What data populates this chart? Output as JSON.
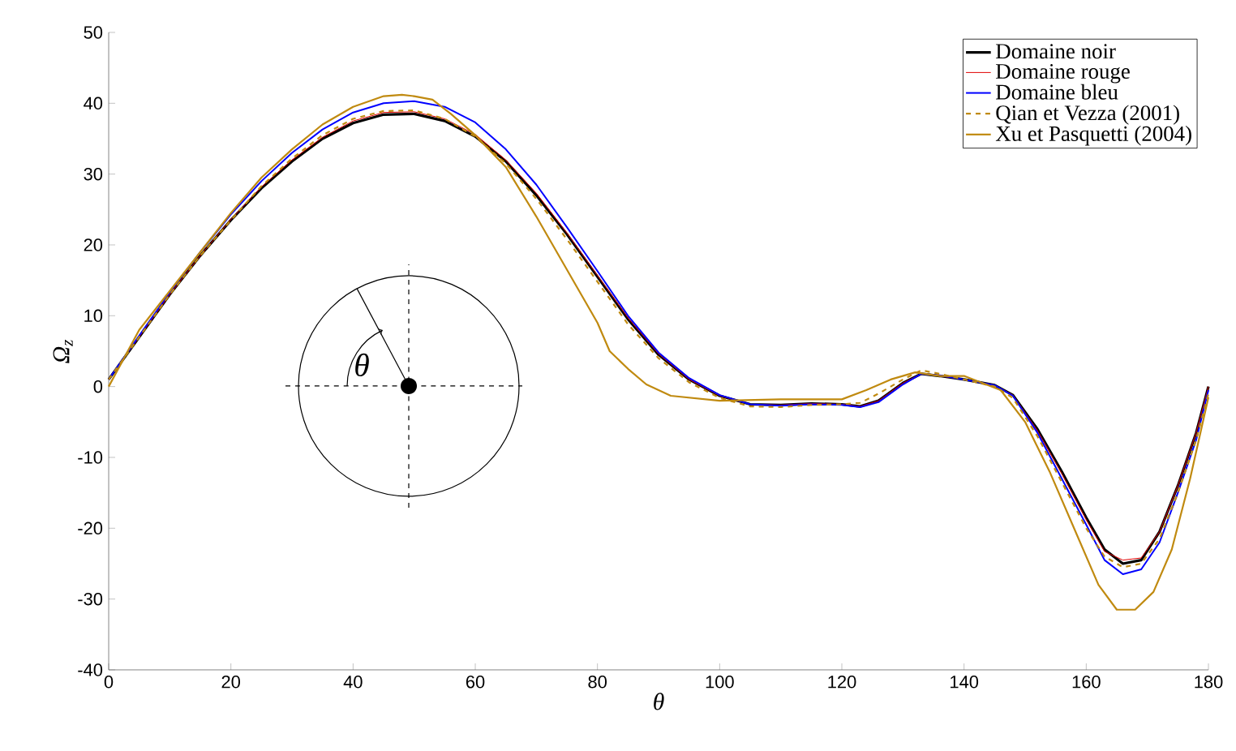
{
  "chart_data": {
    "type": "line",
    "xlabel": "θ",
    "ylabel": "Ω$_{z}$",
    "xlim": [
      0,
      180
    ],
    "ylim": [
      -40,
      50
    ],
    "xticks": [
      0,
      20,
      40,
      60,
      80,
      100,
      120,
      140,
      160,
      180
    ],
    "yticks": [
      -40,
      -30,
      -20,
      -10,
      0,
      10,
      20,
      30,
      40,
      50
    ],
    "grid": false,
    "legend": "top right",
    "marker": "none",
    "annotations": [
      "θ"
    ],
    "series": [
      {
        "name": "Domaine noir",
        "color": "#000000",
        "line_style": "solid",
        "x": [
          0,
          5,
          10,
          15,
          20,
          25,
          30,
          35,
          40,
          45,
          50,
          55,
          60,
          65,
          70,
          75,
          80,
          85,
          90,
          95,
          100,
          105,
          110,
          115,
          120,
          123,
          126,
          130,
          133,
          136,
          140,
          145,
          148,
          152,
          156,
          160,
          163,
          166,
          169,
          172,
          175,
          178,
          180
        ],
        "values": [
          1,
          7,
          13,
          18.5,
          23.5,
          28,
          31.8,
          35,
          37.2,
          38.4,
          38.5,
          37.5,
          35.3,
          31.8,
          27,
          21.5,
          15.5,
          9.5,
          4.5,
          1,
          -1.3,
          -2.5,
          -2.6,
          -2.4,
          -2.5,
          -2.8,
          -2,
          0.5,
          1.8,
          1.5,
          1,
          0.2,
          -1.2,
          -6,
          -12,
          -18.5,
          -23,
          -25,
          -24.5,
          -20.5,
          -14,
          -6.5,
          0
        ]
      },
      {
        "name": "Domaine rouge",
        "color": "#e00000",
        "line_style": "solid",
        "x": [
          0,
          5,
          10,
          15,
          20,
          25,
          30,
          35,
          40,
          45,
          50,
          55,
          60,
          65,
          70,
          75,
          80,
          85,
          90,
          95,
          100,
          105,
          110,
          115,
          120,
          123,
          126,
          130,
          133,
          136,
          140,
          145,
          148,
          152,
          156,
          160,
          163,
          166,
          169,
          172,
          175,
          178,
          180
        ],
        "values": [
          1,
          7,
          13,
          18.5,
          23.6,
          28.2,
          32,
          35.2,
          37.5,
          38.7,
          38.8,
          37.8,
          35.6,
          32,
          27.3,
          21.7,
          15.7,
          9.7,
          4.6,
          1,
          -1.3,
          -2.5,
          -2.6,
          -2.4,
          -2.5,
          -2.8,
          -2,
          0.5,
          1.8,
          1.5,
          1,
          0.2,
          -1.2,
          -6.2,
          -12.3,
          -18.8,
          -23.3,
          -24.5,
          -24.2,
          -20.5,
          -14,
          -6.5,
          0
        ]
      },
      {
        "name": "Domaine bleu",
        "color": "#0000ff",
        "line_style": "solid",
        "x": [
          0,
          5,
          10,
          15,
          20,
          25,
          30,
          35,
          40,
          45,
          50,
          55,
          60,
          65,
          70,
          75,
          80,
          85,
          90,
          95,
          100,
          105,
          110,
          115,
          120,
          123,
          126,
          130,
          133,
          136,
          140,
          145,
          148,
          152,
          156,
          160,
          163,
          166,
          169,
          172,
          175,
          178,
          180
        ],
        "values": [
          1,
          7.2,
          13.3,
          19,
          24.3,
          29,
          33,
          36.3,
          38.7,
          40,
          40.3,
          39.5,
          37.3,
          33.5,
          28.5,
          22.5,
          16.3,
          10,
          4.8,
          1.2,
          -1.2,
          -2.5,
          -2.7,
          -2.5,
          -2.6,
          -2.9,
          -2.2,
          0.3,
          1.8,
          1.6,
          1,
          0.2,
          -1.3,
          -6.5,
          -13,
          -19.5,
          -24.5,
          -26.5,
          -25.8,
          -22,
          -15,
          -7.5,
          -0.5
        ]
      },
      {
        "name": "Qian et Vezza (2001)",
        "color": "#c08a10",
        "line_style": "dashed",
        "x": [
          0,
          5,
          10,
          15,
          20,
          25,
          30,
          35,
          40,
          45,
          50,
          55,
          60,
          65,
          70,
          75,
          80,
          85,
          90,
          95,
          100,
          105,
          110,
          115,
          120,
          123,
          126,
          130,
          133,
          136,
          140,
          145,
          148,
          152,
          156,
          160,
          163,
          166,
          169,
          172,
          175,
          178,
          180
        ],
        "values": [
          1,
          7,
          13,
          18.5,
          23.5,
          28.3,
          32.2,
          35.5,
          37.8,
          38.9,
          39,
          37.8,
          35.3,
          31.5,
          26.5,
          20.8,
          14.8,
          8.8,
          4,
          0.6,
          -1.6,
          -2.8,
          -2.9,
          -2.6,
          -2.5,
          -2.3,
          -1,
          1,
          2.3,
          1.8,
          1,
          0,
          -1.6,
          -7,
          -13.5,
          -20,
          -24,
          -25.5,
          -25,
          -21.5,
          -15,
          -7.5,
          -1
        ]
      },
      {
        "name": "Xu et Pasquetti (2004)",
        "color": "#c08a10",
        "line_style": "solid",
        "x": [
          0,
          5,
          10,
          15,
          20,
          25,
          30,
          35,
          40,
          45,
          48,
          50,
          53,
          56,
          60,
          65,
          70,
          75,
          80,
          82,
          85,
          88,
          92,
          100,
          110,
          120,
          124,
          128,
          132,
          136,
          140,
          146,
          150,
          154,
          158,
          162,
          165,
          168,
          171,
          174,
          177,
          180
        ],
        "values": [
          0,
          8,
          13.5,
          19,
          24.5,
          29.5,
          33.5,
          37,
          39.5,
          41,
          41.2,
          41,
          40.5,
          38.5,
          35.5,
          31,
          24,
          16.5,
          9,
          5,
          2.5,
          0.3,
          -1.3,
          -2,
          -1.8,
          -1.8,
          -0.5,
          1,
          2,
          1.5,
          1.5,
          -0.5,
          -5,
          -12,
          -20,
          -28,
          -31.5,
          -31.5,
          -29,
          -23,
          -13,
          -1.5
        ]
      }
    ]
  }
}
